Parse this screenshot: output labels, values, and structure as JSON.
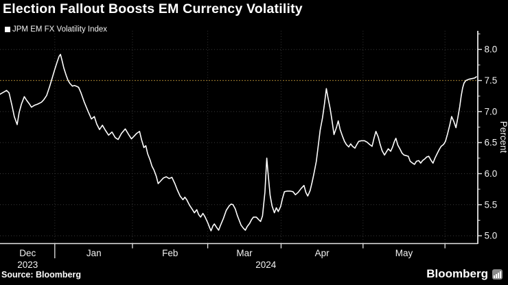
{
  "header": {
    "title": "Election Fallout Boosts EM Currency Volatility"
  },
  "legend": {
    "label": "JPM EM FX Volatility Index",
    "marker_color": "#ffffff"
  },
  "footer": {
    "source": "Source: Bloomberg",
    "brand": "Bloomberg"
  },
  "colors": {
    "background": "#000000",
    "line": "#ffffff",
    "grid": "#3c3c3c",
    "grid_vertical": "#333333",
    "highlight_grid": "#8a6b28",
    "axis": "#e8e8e8",
    "text": "#f2f2f2"
  },
  "chart_data": {
    "type": "line",
    "title": "Election Fallout Boosts EM Currency Volatility",
    "series_name": "JPM EM FX Volatility Index",
    "xlabel": "",
    "ylabel": "Percent",
    "ylim": [
      4.88,
      8.3
    ],
    "y_major_ticks": [
      5.0,
      5.5,
      6.0,
      6.5,
      7.0,
      7.5,
      8.0
    ],
    "y_minor_ticks": [
      5.25,
      5.75,
      6.25,
      6.75,
      7.25,
      7.75,
      8.25
    ],
    "highlight_gridline": 7.5,
    "grid": true,
    "legend_position": "top-left",
    "x_axis": {
      "unit": "fraction_of_time_axis",
      "month_boundaries": [
        0.115,
        0.278,
        0.436,
        0.59,
        0.762,
        0.934
      ],
      "month_labels": [
        {
          "label": "Dec",
          "pos": 0.058
        },
        {
          "label": "Jan",
          "pos": 0.197
        },
        {
          "label": "Feb",
          "pos": 0.357
        },
        {
          "label": "Mar",
          "pos": 0.513
        },
        {
          "label": "Apr",
          "pos": 0.676
        },
        {
          "label": "May",
          "pos": 0.848
        }
      ],
      "year_labels": [
        {
          "label": "2023",
          "pos": 0.058
        },
        {
          "label": "2024",
          "pos": 0.558
        }
      ],
      "year_divider_pos": 0.115
    },
    "last_value": 7.56,
    "points": [
      [
        0.0,
        7.28
      ],
      [
        0.007,
        7.31
      ],
      [
        0.014,
        7.34
      ],
      [
        0.019,
        7.3
      ],
      [
        0.025,
        7.1
      ],
      [
        0.03,
        6.92
      ],
      [
        0.036,
        6.79
      ],
      [
        0.04,
        6.98
      ],
      [
        0.045,
        7.12
      ],
      [
        0.051,
        7.24
      ],
      [
        0.056,
        7.18
      ],
      [
        0.062,
        7.12
      ],
      [
        0.066,
        7.07
      ],
      [
        0.072,
        7.1
      ],
      [
        0.079,
        7.12
      ],
      [
        0.087,
        7.15
      ],
      [
        0.092,
        7.19
      ],
      [
        0.098,
        7.26
      ],
      [
        0.104,
        7.4
      ],
      [
        0.11,
        7.55
      ],
      [
        0.115,
        7.68
      ],
      [
        0.12,
        7.8
      ],
      [
        0.124,
        7.89
      ],
      [
        0.127,
        7.92
      ],
      [
        0.13,
        7.83
      ],
      [
        0.134,
        7.7
      ],
      [
        0.139,
        7.58
      ],
      [
        0.143,
        7.5
      ],
      [
        0.147,
        7.45
      ],
      [
        0.152,
        7.41
      ],
      [
        0.156,
        7.42
      ],
      [
        0.16,
        7.41
      ],
      [
        0.165,
        7.39
      ],
      [
        0.17,
        7.3
      ],
      [
        0.177,
        7.15
      ],
      [
        0.185,
        7.0
      ],
      [
        0.192,
        6.88
      ],
      [
        0.198,
        6.92
      ],
      [
        0.203,
        6.8
      ],
      [
        0.209,
        6.71
      ],
      [
        0.215,
        6.78
      ],
      [
        0.221,
        6.7
      ],
      [
        0.228,
        6.62
      ],
      [
        0.235,
        6.67
      ],
      [
        0.242,
        6.58
      ],
      [
        0.248,
        6.55
      ],
      [
        0.255,
        6.65
      ],
      [
        0.263,
        6.72
      ],
      [
        0.27,
        6.63
      ],
      [
        0.276,
        6.56
      ],
      [
        0.281,
        6.6
      ],
      [
        0.287,
        6.65
      ],
      [
        0.293,
        6.68
      ],
      [
        0.297,
        6.55
      ],
      [
        0.302,
        6.42
      ],
      [
        0.306,
        6.45
      ],
      [
        0.31,
        6.32
      ],
      [
        0.315,
        6.22
      ],
      [
        0.319,
        6.12
      ],
      [
        0.323,
        6.06
      ],
      [
        0.328,
        5.96
      ],
      [
        0.332,
        5.84
      ],
      [
        0.338,
        5.89
      ],
      [
        0.343,
        5.93
      ],
      [
        0.349,
        5.95
      ],
      [
        0.355,
        5.92
      ],
      [
        0.361,
        5.94
      ],
      [
        0.367,
        5.84
      ],
      [
        0.372,
        5.74
      ],
      [
        0.378,
        5.64
      ],
      [
        0.384,
        5.58
      ],
      [
        0.388,
        5.62
      ],
      [
        0.392,
        5.58
      ],
      [
        0.398,
        5.49
      ],
      [
        0.404,
        5.42
      ],
      [
        0.408,
        5.37
      ],
      [
        0.413,
        5.42
      ],
      [
        0.417,
        5.34
      ],
      [
        0.421,
        5.3
      ],
      [
        0.426,
        5.36
      ],
      [
        0.43,
        5.31
      ],
      [
        0.436,
        5.21
      ],
      [
        0.44,
        5.13
      ],
      [
        0.443,
        5.08
      ],
      [
        0.447,
        5.16
      ],
      [
        0.45,
        5.19
      ],
      [
        0.455,
        5.13
      ],
      [
        0.459,
        5.09
      ],
      [
        0.463,
        5.17
      ],
      [
        0.469,
        5.28
      ],
      [
        0.475,
        5.41
      ],
      [
        0.481,
        5.48
      ],
      [
        0.485,
        5.51
      ],
      [
        0.489,
        5.5
      ],
      [
        0.494,
        5.43
      ],
      [
        0.498,
        5.33
      ],
      [
        0.502,
        5.25
      ],
      [
        0.506,
        5.17
      ],
      [
        0.511,
        5.12
      ],
      [
        0.515,
        5.09
      ],
      [
        0.519,
        5.15
      ],
      [
        0.524,
        5.2
      ],
      [
        0.528,
        5.26
      ],
      [
        0.532,
        5.3
      ],
      [
        0.538,
        5.3
      ],
      [
        0.543,
        5.26
      ],
      [
        0.547,
        5.23
      ],
      [
        0.551,
        5.32
      ],
      [
        0.556,
        5.7
      ],
      [
        0.56,
        6.25
      ],
      [
        0.563,
        5.98
      ],
      [
        0.567,
        5.65
      ],
      [
        0.571,
        5.48
      ],
      [
        0.576,
        5.37
      ],
      [
        0.58,
        5.45
      ],
      [
        0.584,
        5.39
      ],
      [
        0.589,
        5.47
      ],
      [
        0.593,
        5.6
      ],
      [
        0.597,
        5.71
      ],
      [
        0.603,
        5.72
      ],
      [
        0.609,
        5.72
      ],
      [
        0.615,
        5.71
      ],
      [
        0.62,
        5.66
      ],
      [
        0.626,
        5.7
      ],
      [
        0.632,
        5.76
      ],
      [
        0.638,
        5.81
      ],
      [
        0.642,
        5.7
      ],
      [
        0.646,
        5.64
      ],
      [
        0.651,
        5.73
      ],
      [
        0.655,
        5.86
      ],
      [
        0.659,
        6.0
      ],
      [
        0.664,
        6.2
      ],
      [
        0.668,
        6.45
      ],
      [
        0.672,
        6.7
      ],
      [
        0.677,
        6.9
      ],
      [
        0.681,
        7.12
      ],
      [
        0.685,
        7.37
      ],
      [
        0.688,
        7.24
      ],
      [
        0.693,
        7.05
      ],
      [
        0.697,
        6.85
      ],
      [
        0.701,
        6.63
      ],
      [
        0.706,
        6.74
      ],
      [
        0.71,
        6.85
      ],
      [
        0.714,
        6.71
      ],
      [
        0.719,
        6.6
      ],
      [
        0.723,
        6.52
      ],
      [
        0.727,
        6.47
      ],
      [
        0.732,
        6.43
      ],
      [
        0.736,
        6.48
      ],
      [
        0.74,
        6.44
      ],
      [
        0.745,
        6.41
      ],
      [
        0.749,
        6.47
      ],
      [
        0.753,
        6.52
      ],
      [
        0.759,
        6.53
      ],
      [
        0.765,
        6.53
      ],
      [
        0.77,
        6.51
      ],
      [
        0.776,
        6.47
      ],
      [
        0.781,
        6.44
      ],
      [
        0.785,
        6.57
      ],
      [
        0.789,
        6.68
      ],
      [
        0.794,
        6.59
      ],
      [
        0.798,
        6.47
      ],
      [
        0.802,
        6.37
      ],
      [
        0.807,
        6.3
      ],
      [
        0.811,
        6.35
      ],
      [
        0.815,
        6.4
      ],
      [
        0.82,
        6.36
      ],
      [
        0.824,
        6.43
      ],
      [
        0.828,
        6.52
      ],
      [
        0.831,
        6.57
      ],
      [
        0.835,
        6.46
      ],
      [
        0.84,
        6.39
      ],
      [
        0.844,
        6.33
      ],
      [
        0.848,
        6.3
      ],
      [
        0.853,
        6.29
      ],
      [
        0.857,
        6.28
      ],
      [
        0.861,
        6.2
      ],
      [
        0.866,
        6.17
      ],
      [
        0.87,
        6.15
      ],
      [
        0.874,
        6.2
      ],
      [
        0.879,
        6.21
      ],
      [
        0.883,
        6.17
      ],
      [
        0.887,
        6.21
      ],
      [
        0.892,
        6.24
      ],
      [
        0.896,
        6.27
      ],
      [
        0.9,
        6.28
      ],
      [
        0.905,
        6.21
      ],
      [
        0.909,
        6.17
      ],
      [
        0.913,
        6.25
      ],
      [
        0.918,
        6.33
      ],
      [
        0.922,
        6.39
      ],
      [
        0.926,
        6.44
      ],
      [
        0.931,
        6.47
      ],
      [
        0.935,
        6.52
      ],
      [
        0.939,
        6.63
      ],
      [
        0.944,
        6.78
      ],
      [
        0.948,
        6.92
      ],
      [
        0.952,
        6.85
      ],
      [
        0.957,
        6.74
      ],
      [
        0.961,
        6.9
      ],
      [
        0.965,
        7.08
      ],
      [
        0.968,
        7.25
      ],
      [
        0.971,
        7.38
      ],
      [
        0.974,
        7.46
      ],
      [
        0.978,
        7.5
      ],
      [
        0.984,
        7.52
      ],
      [
        0.99,
        7.53
      ],
      [
        0.996,
        7.54
      ],
      [
        1.0,
        7.56
      ]
    ]
  }
}
